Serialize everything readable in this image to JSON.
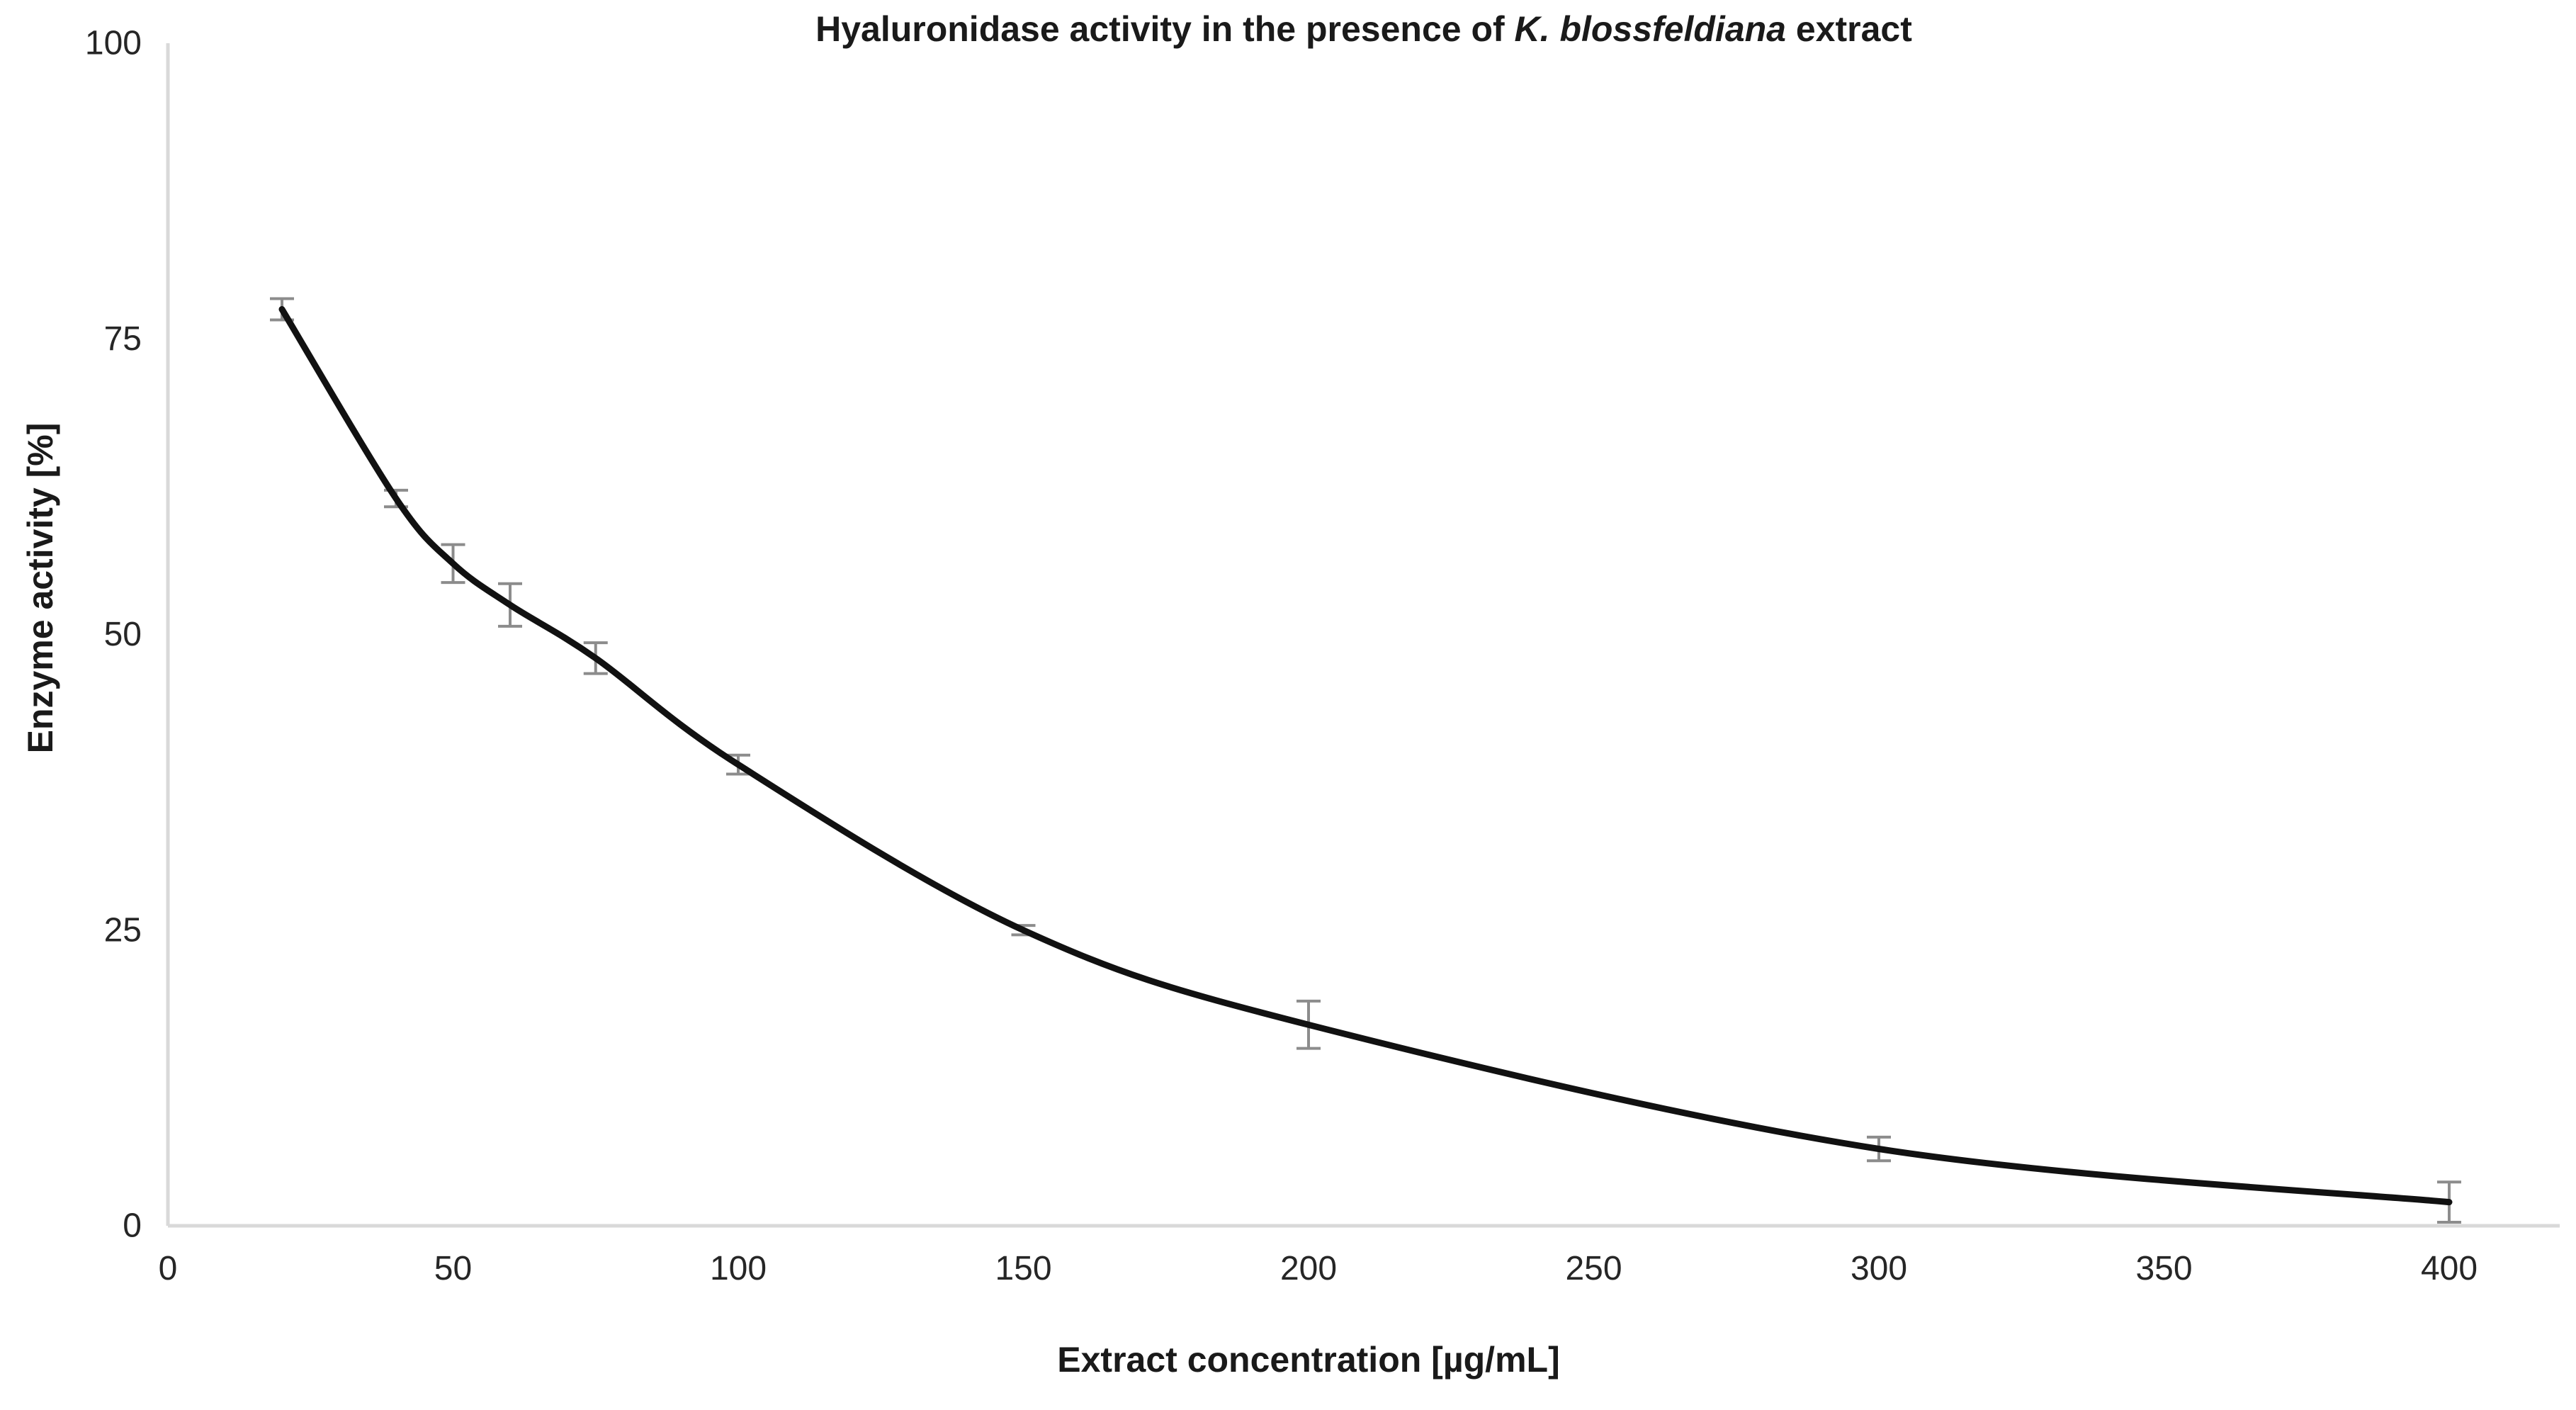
{
  "chart_data": {
    "type": "line",
    "title": {
      "prefix": "Hyaluronidase activity in the presence of ",
      "species_italic": "K. blossfeldiana",
      "suffix": " extract"
    },
    "xlabel": "Extract concentration [µg/mL]",
    "ylabel": "Enzyme activity [%]",
    "series": [
      {
        "x": [
          20,
          40,
          50,
          60,
          75,
          100,
          150,
          200,
          300,
          400
        ],
        "y": [
          77.5,
          61.5,
          56,
          52.5,
          48,
          39,
          25,
          17,
          6.5,
          2
        ],
        "yerr": [
          0.9,
          0.7,
          1.6,
          1.8,
          1.3,
          0.8,
          0.4,
          2,
          1,
          1.7
        ]
      }
    ],
    "xticks": [
      0,
      50,
      100,
      150,
      200,
      250,
      300,
      350,
      400
    ],
    "yticks": [
      0,
      25,
      50,
      75,
      100
    ],
    "xlim": [
      0,
      420
    ],
    "ylim": [
      0,
      100
    ],
    "grid": false,
    "legend": "none",
    "line_smooth": true,
    "colors": {
      "line": "#111111",
      "error_bar": "#8c8c8c",
      "axis_line": "#d9d9d9",
      "text": "#262626",
      "title_text": "#1a1a1a",
      "background": "#ffffff"
    }
  }
}
